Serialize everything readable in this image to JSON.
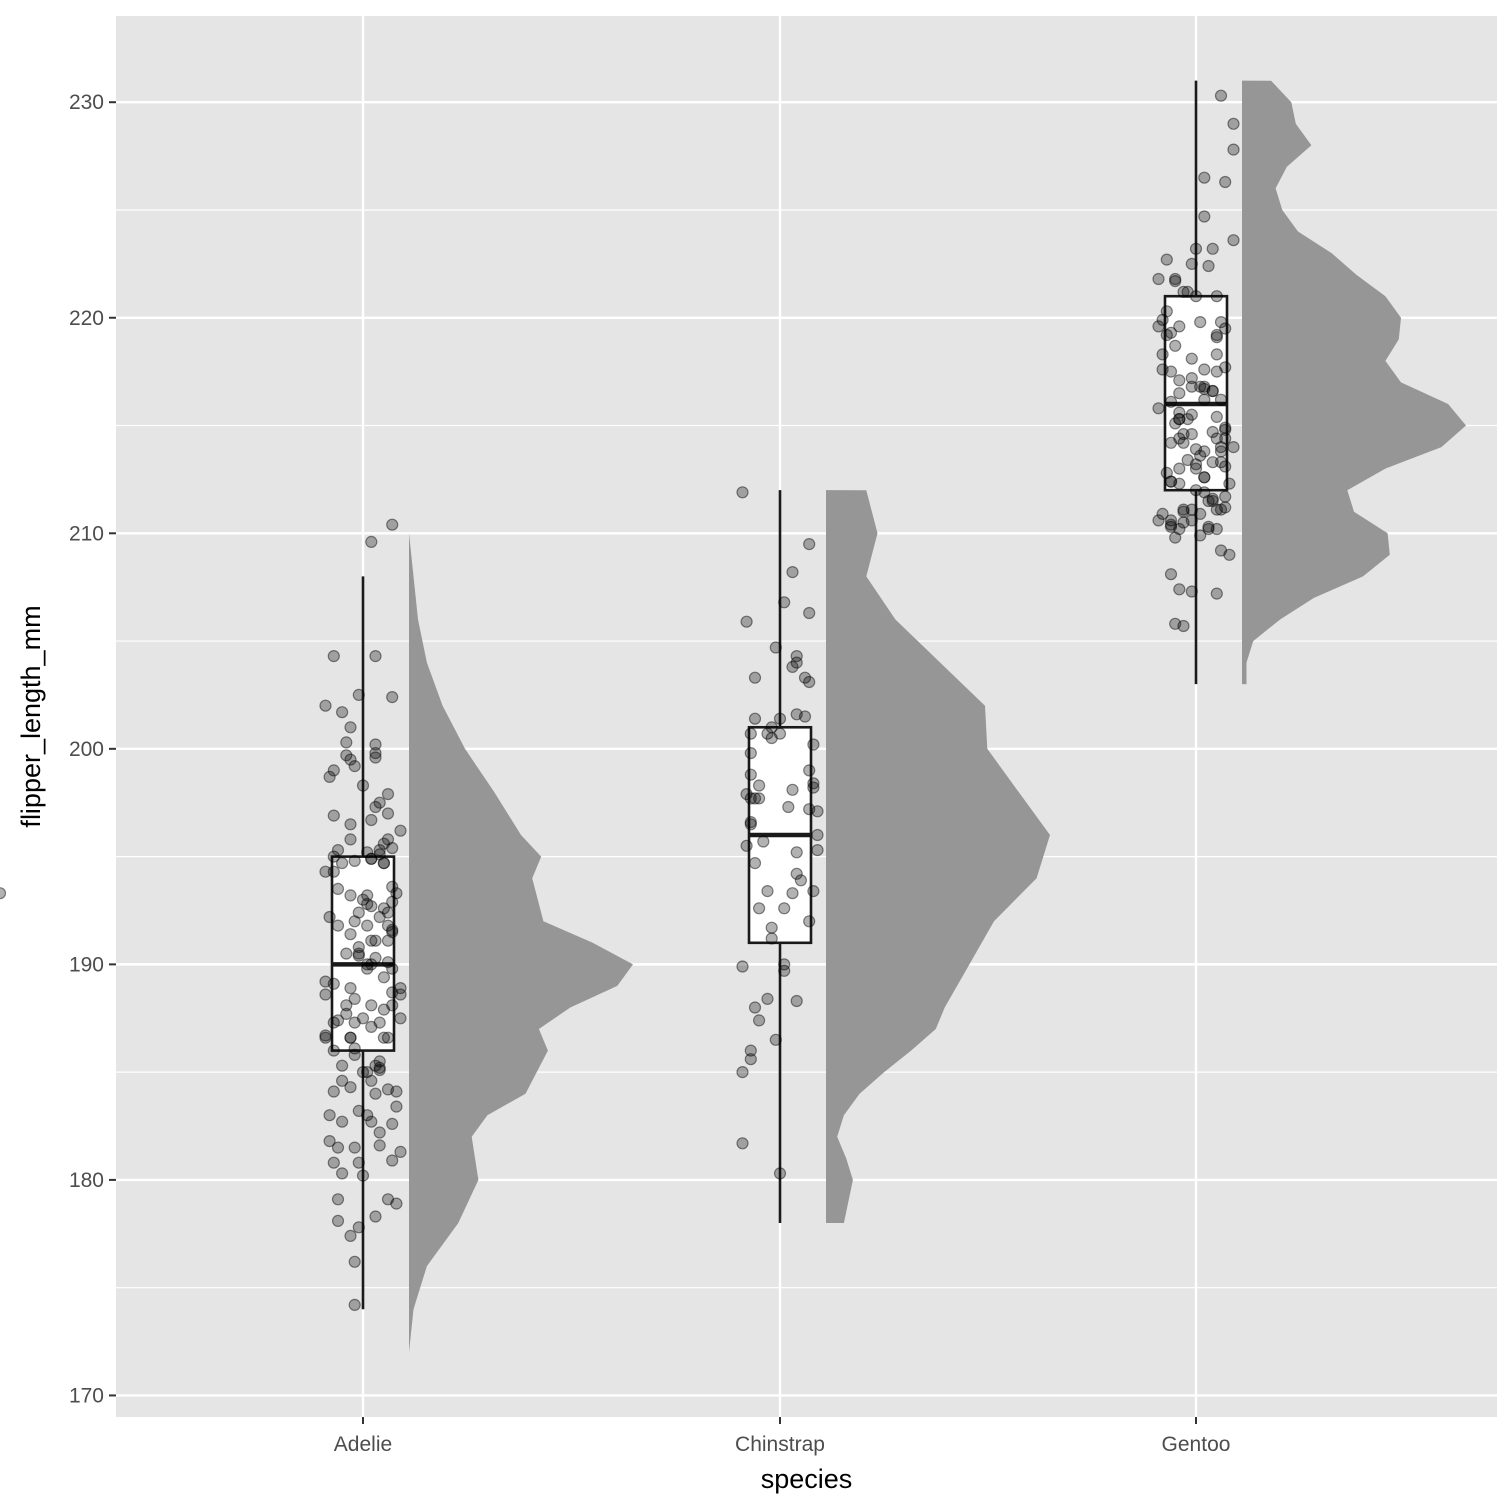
{
  "chart_data": {
    "type": "raincloud",
    "xlabel": "species",
    "ylabel": "flipper_length_mm",
    "categories": [
      "Adelie",
      "Chinstrap",
      "Gentoo"
    ],
    "ylim": [
      169,
      234
    ],
    "y_ticks": [
      170,
      180,
      190,
      200,
      210,
      220,
      230
    ],
    "grid": true,
    "colors": {
      "panel": "#e5e5e5",
      "grid": "#ffffff",
      "density": "#969696",
      "box_line": "#1a1a1a",
      "point": "#000000",
      "tick_text": "#4d4d4d"
    },
    "boxplots": [
      {
        "species": "Adelie",
        "whisker_low": 174,
        "q1": 186,
        "median": 190,
        "q3": 195,
        "whisker_high": 208
      },
      {
        "species": "Chinstrap",
        "whisker_low": 178,
        "q1": 191,
        "median": 196,
        "q3": 201,
        "whisker_high": 212
      },
      {
        "species": "Gentoo",
        "whisker_low": 203,
        "q1": 212,
        "median": 216,
        "q3": 221,
        "whisker_high": 231
      }
    ],
    "densities": [
      {
        "species": "Adelie",
        "y": [
          172,
          174,
          176,
          178,
          180,
          182,
          183,
          184,
          186,
          187,
          188,
          189,
          190,
          191,
          192,
          194,
          195,
          196,
          198,
          200,
          202,
          204,
          206,
          208,
          210
        ],
        "density": [
          0.0,
          0.02,
          0.08,
          0.22,
          0.31,
          0.28,
          0.35,
          0.52,
          0.62,
          0.58,
          0.72,
          0.93,
          1.0,
          0.82,
          0.6,
          0.55,
          0.59,
          0.5,
          0.38,
          0.25,
          0.15,
          0.08,
          0.04,
          0.02,
          0.0
        ]
      },
      {
        "species": "Chinstrap",
        "y": [
          178,
          179,
          180,
          181,
          182,
          183,
          184,
          185,
          186,
          187,
          188,
          190,
          192,
          194,
          196,
          198,
          200,
          202,
          204,
          206,
          208,
          210,
          212
        ],
        "density": [
          0.08,
          0.1,
          0.12,
          0.09,
          0.05,
          0.08,
          0.15,
          0.26,
          0.38,
          0.49,
          0.53,
          0.64,
          0.75,
          0.94,
          1.0,
          0.86,
          0.72,
          0.71,
          0.51,
          0.31,
          0.18,
          0.23,
          0.18
        ]
      },
      {
        "species": "Gentoo",
        "y": [
          203,
          204,
          205,
          206,
          207,
          208,
          209,
          210,
          211,
          212,
          213,
          214,
          215,
          216,
          217,
          218,
          219,
          220,
          221,
          222,
          223,
          224,
          225,
          226,
          227,
          228,
          229,
          230,
          231
        ],
        "density": [
          0.02,
          0.02,
          0.05,
          0.17,
          0.32,
          0.54,
          0.66,
          0.65,
          0.5,
          0.47,
          0.64,
          0.89,
          1.0,
          0.92,
          0.71,
          0.64,
          0.7,
          0.71,
          0.64,
          0.51,
          0.4,
          0.25,
          0.18,
          0.15,
          0.2,
          0.31,
          0.24,
          0.22,
          0.13
        ]
      }
    ],
    "points": [
      {
        "species": "Adelie",
        "offset": [
          -0.08,
          -0.05,
          0.03,
          0.05,
          -0.01,
          -0.02,
          0.04,
          -0.09,
          0.08,
          -0.04,
          -0.02,
          -0.06,
          -0.06,
          0.06,
          0.04,
          0.0,
          0.05,
          -0.06,
          -0.03,
          0.02,
          0.07,
          0.07,
          -0.08,
          -0.07,
          0.03,
          0.07,
          0.05,
          0.06,
          0.07,
          0.04,
          0.02,
          -0.05,
          0.04,
          -0.01,
          -0.01,
          -0.09,
          -0.07,
          -0.01,
          0.09,
          -0.01,
          -0.06,
          0.02,
          -0.07,
          -0.03,
          0.02,
          -0.02,
          -0.04,
          0.02,
          0.07,
          -0.02,
          0.01,
          -0.05,
          -0.02,
          -0.01,
          0.06,
          -0.03,
          0.02,
          -0.01,
          0.07,
          0.09,
          -0.03,
          0.01,
          0.03,
          0.06,
          0.0,
          -0.02,
          -0.03,
          0.05,
          -0.03,
          0.06,
          0.01,
          -0.09,
          -0.08,
          0.08,
          0.04,
          -0.07,
          -0.03,
          0.02,
          0.04,
          0.05,
          -0.08,
          -0.02,
          -0.01,
          0.03,
          0.04,
          0.0,
          -0.03,
          0.02,
          0.01,
          -0.05,
          0.09,
          0.07,
          0.07,
          0.02,
          -0.07,
          -0.09,
          0.06,
          -0.03,
          0.06,
          0.08,
          0.04,
          0.01,
          0.03,
          0.07,
          -0.02,
          -0.04,
          0.03,
          0.02,
          -0.07,
          -0.02,
          0.02,
          -0.03,
          0.03,
          0.01,
          0.06,
          -0.04,
          -0.06,
          -0.06,
          0.09,
          -0.09,
          -0.07,
          -0.07,
          0.06,
          -0.07,
          0.01,
          0.07,
          -0.09,
          -0.03,
          0.07,
          -0.05,
          0.06,
          0.04,
          0.0,
          0.05,
          0.03,
          -0.02,
          0.03,
          0.08,
          -0.07,
          0.0,
          -0.05,
          0.07,
          0.01,
          0.05,
          0.03,
          -0.04,
          0.04,
          -0.06,
          0.09
        ],
        "value": [
          181.8,
          201.7,
          190.3,
          194.7,
          180.8,
          176.2,
          182.2,
          202.0,
          178.9,
          187.7,
          188.4,
          187.4,
          193.5,
          179.1,
          195.1,
          180.2,
          186.6,
          178.1,
          201.0,
          194.9,
          202.4,
          192.9,
          198.7,
          204.3,
          204.3,
          210.4,
          195.6,
          195.8,
          191.5,
          195.3,
          209.6,
          182.7,
          192.2,
          190.5,
          190.8,
          186.6,
          184.1,
          190.4,
          188.9,
          192.4,
          191.8,
          192.7,
          199.0,
          193.2,
          194.9,
          192.0,
          200.3,
          188.1,
          182.6,
          174.2,
          195.2,
          180.3,
          199.2,
          202.5,
          191.1,
          199.5,
          190.0,
          177.8,
          193.6,
          187.5,
          188.9,
          192.8,
          199.6,
          191.8,
          187.5,
          187.3,
          195.8,
          194.7,
          186.6,
          184.2,
          185.0,
          186.7,
          192.2,
          183.4,
          187.3,
          194.3,
          191.4,
          182.7,
          197.5,
          187.9,
          183.0,
          194.8,
          183.2,
          178.3,
          185.2,
          185.0,
          177.4,
          187.1,
          193.2,
          194.7,
          196.2,
          188.1,
          195.4,
          184.6,
          187.3,
          194.3,
          186.6,
          186.6,
          190.1,
          193.3,
          185.5,
          190.0,
          185.3,
          180.9,
          185.8,
          190.5,
          200.2,
          191.1,
          180.8,
          186.1,
          196.7,
          184.3,
          191.1,
          191.8,
          197.9,
          188.1,
          181.5,
          195.3,
          188.6,
          189.2,
          186.0,
          196.9,
          197.0,
          189.1,
          183.0,
          189.8,
          188.6,
          196.5,
          188.7,
          184.6,
          192.4,
          185.1,
          193.0,
          189.4,
          197.3,
          181.5,
          199.8,
          184.1,
          195.0,
          198.3,
          185.3,
          191.6,
          189.8,
          192.6,
          184.0,
          199.7,
          181.6,
          179.1,
          181.3,
          193.3
        ]
      },
      {
        "species": "Chinstrap",
        "offset": [
          -0.05,
          0.07,
          0.04,
          0.04,
          0.01,
          0.09,
          -0.01,
          -0.07,
          -0.03,
          -0.03,
          -0.02,
          -0.05,
          -0.03,
          0.03,
          -0.08,
          0.01,
          -0.09,
          -0.08,
          0.0,
          -0.07,
          0.02,
          -0.09,
          -0.08,
          -0.07,
          0.03,
          0.07,
          -0.01,
          0.08,
          -0.06,
          0.08,
          0.07,
          -0.05,
          -0.04,
          0.05,
          -0.07,
          -0.07,
          -0.09,
          0.0,
          0.03,
          0.09,
          0.07,
          0.06,
          0.09,
          0.04,
          0.07,
          0.04,
          -0.05,
          -0.06,
          0.08,
          -0.02,
          -0.07,
          0.01,
          -0.07,
          -0.02,
          -0.06,
          0.04,
          0.01,
          0.07,
          0.06,
          -0.09,
          -0.06,
          -0.06,
          -0.07,
          -0.02,
          0.0,
          0.03,
          0.04,
          0.08
        ],
        "value": [
          187.4,
          197.2,
          188.3,
          194.2,
          190.0,
          195.3,
          186.5,
          199.8,
          188.4,
          193.4,
          191.7,
          192.6,
          200.7,
          203.8,
          205.9,
          189.7,
          189.9,
          195.5,
          180.3,
          198.8,
          197.3,
          185.0,
          197.9,
          196.5,
          193.3,
          199.0,
          204.7,
          198.2,
          188.0,
          198.4,
          206.3,
          197.7,
          195.7,
          193.9,
          185.6,
          186.0,
          181.7,
          201.4,
          198.1,
          197.1,
          192.0,
          201.5,
          196.0,
          201.6,
          203.1,
          204.0,
          198.3,
          197.7,
          193.4,
          191.2,
          196.6,
          192.6,
          197.7,
          200.5,
          201.4,
          195.2,
          206.8,
          209.5,
          203.3,
          211.9,
          203.3,
          194.7,
          200.7,
          201.0,
          200.7,
          208.2,
          204.3,
          200.2
        ]
      },
      {
        "species": "Gentoo",
        "offset": [
          0.02,
          -0.06,
          0.09,
          0.01,
          0.05,
          -0.06,
          -0.01,
          -0.08,
          0.02,
          0.0,
          -0.04,
          0.08,
          -0.05,
          0.01,
          0.02,
          -0.06,
          0.06,
          0.01,
          -0.04,
          0.06,
          -0.05,
          0.07,
          -0.02,
          -0.05,
          -0.07,
          0.05,
          -0.01,
          -0.01,
          -0.01,
          0.05,
          0.05,
          -0.06,
          0.02,
          0.06,
          0.07,
          0.07,
          0.04,
          0.04,
          -0.07,
          -0.05,
          -0.03,
          -0.03,
          0.07,
          0.06,
          0.06,
          -0.07,
          0.04,
          -0.01,
          -0.01,
          0.04,
          0.01,
          -0.07,
          0.0,
          0.06,
          0.0,
          0.02,
          0.07,
          0.04,
          0.03,
          0.09,
          0.05,
          0.07,
          0.0,
          -0.01,
          -0.06,
          -0.01,
          -0.04,
          -0.05,
          0.02,
          0.05,
          0.03,
          0.01,
          0.09,
          0.03,
          0.07,
          -0.03,
          0.02,
          -0.06,
          -0.03,
          -0.04,
          0.03,
          0.02,
          -0.09,
          -0.04,
          -0.06,
          -0.02,
          0.06,
          0.04,
          -0.02,
          -0.06,
          0.09,
          -0.04,
          0.07,
          0.08,
          0.02,
          0.0,
          0.0,
          0.05,
          -0.03,
          -0.01,
          0.04,
          -0.04,
          -0.08,
          -0.04,
          -0.03,
          -0.09,
          -0.04,
          -0.04,
          0.05,
          0.06,
          0.05,
          -0.04,
          -0.05,
          -0.08,
          -0.03,
          -0.08,
          0.07,
          -0.06,
          -0.09,
          -0.09,
          -0.06,
          0.02,
          0.05
        ],
        "value": [
          216.7,
          208.1,
          227.8,
          216.8,
          218.3,
          216.1,
          218.1,
          210.9,
          216.2,
          213.0,
          219.6,
          209.0,
          215.1,
          213.6,
          224.7,
          210.6,
          219.8,
          210.9,
          214.4,
          230.3,
          209.8,
          214.4,
          213.4,
          205.8,
          219.2,
          211.1,
          207.3,
          214.6,
          210.6,
          210.2,
          207.2,
          210.3,
          217.6,
          211.1,
          211.7,
          211.2,
          211.5,
          213.3,
          212.8,
          221.7,
          211.0,
          205.7,
          214.9,
          213.3,
          214.0,
          220.3,
          216.6,
          216.8,
          217.2,
          214.7,
          219.8,
          222.7,
          212.0,
          213.8,
          213.9,
          216.8,
          214.8,
          211.6,
          211.5,
          214.0,
          215.4,
          226.3,
          223.2,
          222.5,
          210.4,
          211.1,
          215.3,
          218.7,
          211.9,
          221.0,
          210.2,
          209.9,
          223.6,
          210.3,
          217.7,
          214.6,
          226.5,
          217.5,
          221.2,
          212.3,
          222.4,
          213.8,
          219.6,
          215.6,
          214.2,
          221.2,
          216.2,
          223.2,
          215.3,
          212.4,
          229.0,
          213.0,
          213.1,
          212.3,
          212.6,
          221.0,
          213.2,
          214.4,
          214.2,
          215.5,
          216.6,
          210.2,
          218.3,
          215.3,
          210.5,
          221.8,
          217.1,
          216.5,
          217.5,
          209.2,
          219.2,
          207.4,
          221.8,
          217.6,
          211.1,
          219.9,
          219.5,
          219.3,
          210.6,
          215.8,
          212.4,
          212.6,
          219.1
        ]
      }
    ]
  }
}
